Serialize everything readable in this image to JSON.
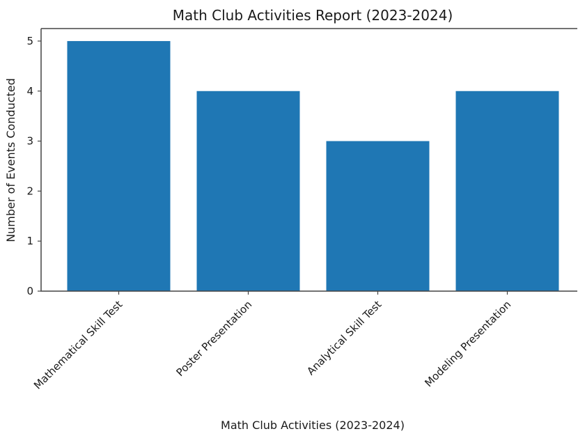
{
  "chart_data": {
    "type": "bar",
    "title": "Math Club Activities Report (2023-2024)",
    "xlabel": "Math Club Activities (2023-2024)",
    "ylabel": "Number of Events Conducted",
    "categories": [
      "Mathematical Skill Test",
      "Poster Presentation",
      "Analytical Skill Test",
      "Modeling Presentation"
    ],
    "values": [
      5,
      4,
      3,
      4
    ],
    "yticks": [
      "0",
      "1",
      "2",
      "3",
      "4",
      "5"
    ],
    "ylim": [
      0,
      5.25
    ],
    "grid": false,
    "bar_color": "#1f77b4"
  }
}
